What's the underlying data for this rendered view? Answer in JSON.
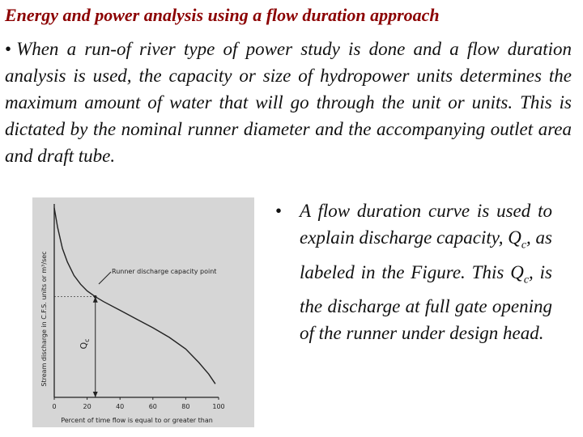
{
  "slide": {
    "title": "Energy and power analysis using a flow duration approach",
    "bullet_symbol": "•",
    "intro_text": "When a run-of river type of power study is done and a flow duration analysis is used, the capacity or size of hydropower units determines the maximum amount of water that will go through the unit or units. This is dictated by the nominal runner diameter and the accompanying outlet area and draft tube.",
    "side_bullet": {
      "part1": "A flow duration curve is used to explain discharge capacity, Q",
      "sub1": "c",
      "part2": ", as labeled in the Figure. This Q",
      "sub2": "c",
      "part3": ", is the discharge at full gate opening of the runner under design head."
    }
  },
  "figure": {
    "runner_label": "Runner discharge capacity point",
    "qc_main": "Q",
    "qc_sub": "c",
    "colors": {
      "panel": "#d6d6d6",
      "curve": "#222222",
      "title": "#8b0000"
    }
  },
  "chart_data": {
    "type": "line",
    "title": "",
    "xlabel": "Percent of time flow is equal to or greater than",
    "ylabel": "Stream discharge in C.F.S. units or m³/sec",
    "xlim": [
      0,
      100
    ],
    "x_ticks": [
      "0",
      "20",
      "40",
      "60",
      "80",
      "100"
    ],
    "y_ticks": [],
    "grid": false,
    "series": [
      {
        "x": [
          0,
          2,
          5,
          8,
          12,
          16,
          20,
          25,
          30,
          40,
          50,
          60,
          70,
          80,
          88,
          94,
          98
        ],
        "y": [
          98,
          88,
          77,
          70,
          63,
          58.5,
          55,
          52,
          49.5,
          45,
          40.5,
          36,
          31,
          25,
          18,
          12,
          7
        ]
      }
    ],
    "runner_point": {
      "x": 25,
      "y": 52
    }
  }
}
